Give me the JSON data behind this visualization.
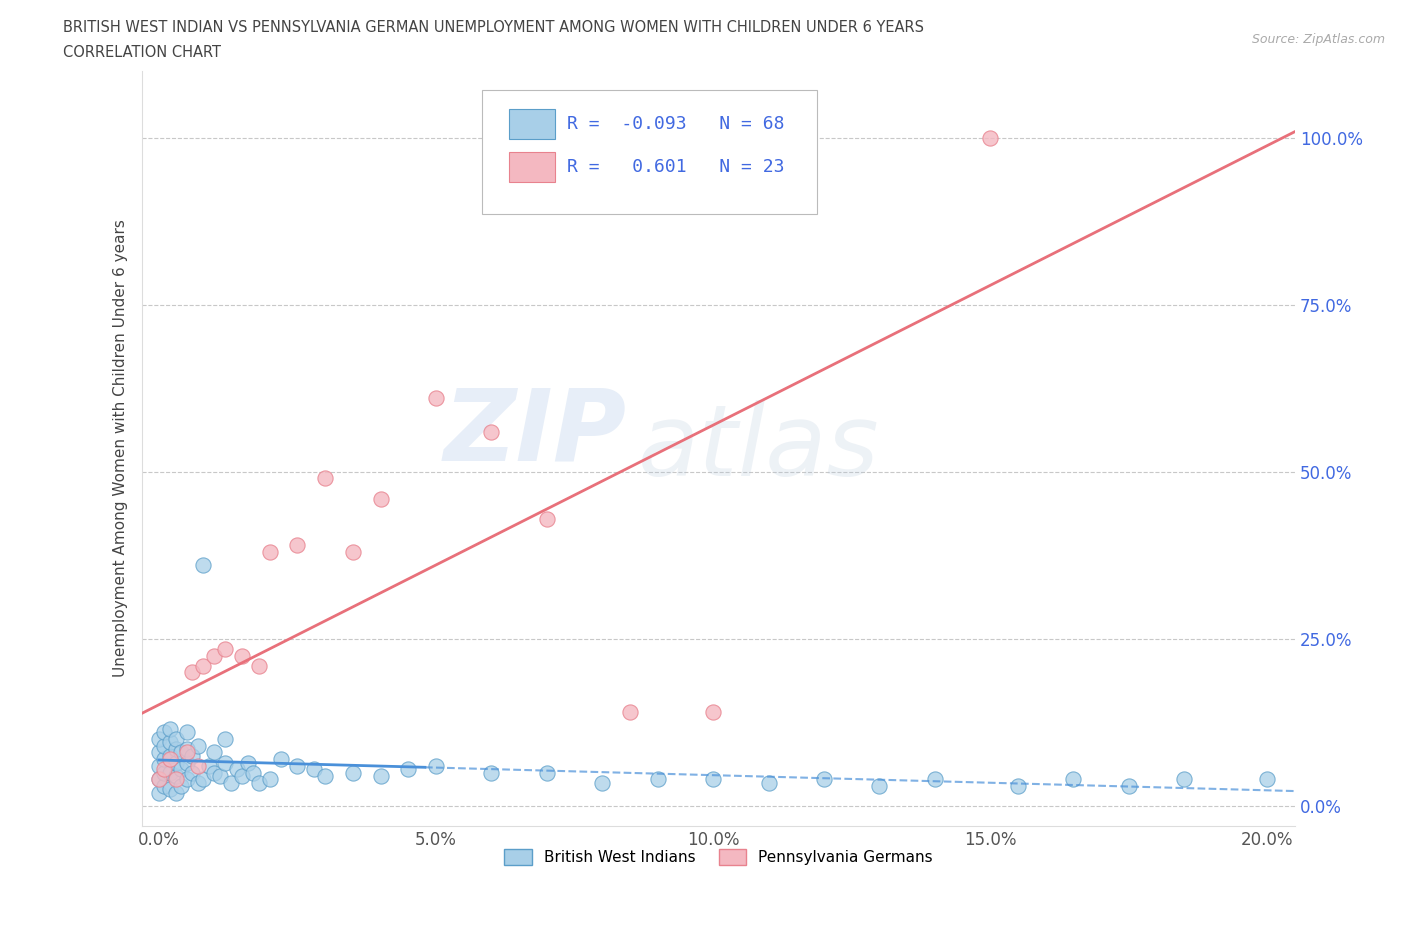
{
  "title_line1": "BRITISH WEST INDIAN VS PENNSYLVANIA GERMAN UNEMPLOYMENT AMONG WOMEN WITH CHILDREN UNDER 6 YEARS",
  "title_line2": "CORRELATION CHART",
  "source": "Source: ZipAtlas.com",
  "ylabel": "Unemployment Among Women with Children Under 6 years",
  "xlim": [
    -0.003,
    0.205
  ],
  "ylim": [
    -0.03,
    1.1
  ],
  "xticks": [
    0.0,
    0.05,
    0.1,
    0.15,
    0.2
  ],
  "yticks": [
    0.0,
    0.25,
    0.5,
    0.75,
    1.0
  ],
  "xtick_labels": [
    "0.0%",
    "5.0%",
    "10.0%",
    "15.0%",
    "20.0%"
  ],
  "ytick_labels": [
    "0.0%",
    "25.0%",
    "50.0%",
    "75.0%",
    "100.0%"
  ],
  "group1_name": "British West Indians",
  "group1_color": "#a8cfe8",
  "group1_edge_color": "#5b9ec9",
  "group1_R": -0.093,
  "group1_N": 68,
  "group1_line_color": "#4a90d9",
  "group2_name": "Pennsylvania Germans",
  "group2_color": "#f4b8c1",
  "group2_edge_color": "#e8828e",
  "group2_R": 0.601,
  "group2_N": 23,
  "group2_line_color": "#e8707a",
  "watermark_zip": "ZIP",
  "watermark_atlas": "atlas",
  "background_color": "#ffffff",
  "grid_color": "#c8c8c8",
  "legend_R_color": "#4169e1",
  "title_color": "#444444",
  "ylabel_color": "#444444",
  "ytick_color": "#4169e1",
  "xtick_color": "#555555",
  "group1_x": [
    0.0,
    0.0,
    0.0,
    0.0,
    0.0,
    0.001,
    0.001,
    0.001,
    0.001,
    0.001,
    0.002,
    0.002,
    0.002,
    0.002,
    0.002,
    0.003,
    0.003,
    0.003,
    0.003,
    0.003,
    0.004,
    0.004,
    0.004,
    0.005,
    0.005,
    0.005,
    0.005,
    0.006,
    0.006,
    0.007,
    0.007,
    0.008,
    0.008,
    0.009,
    0.01,
    0.01,
    0.011,
    0.012,
    0.012,
    0.013,
    0.014,
    0.015,
    0.016,
    0.017,
    0.018,
    0.02,
    0.022,
    0.025,
    0.028,
    0.03,
    0.035,
    0.04,
    0.045,
    0.05,
    0.06,
    0.07,
    0.08,
    0.09,
    0.1,
    0.11,
    0.12,
    0.13,
    0.14,
    0.155,
    0.165,
    0.175,
    0.185,
    0.2
  ],
  "group1_y": [
    0.02,
    0.04,
    0.06,
    0.08,
    0.1,
    0.03,
    0.05,
    0.07,
    0.09,
    0.11,
    0.025,
    0.05,
    0.075,
    0.095,
    0.115,
    0.02,
    0.045,
    0.065,
    0.085,
    0.1,
    0.03,
    0.055,
    0.08,
    0.04,
    0.065,
    0.085,
    0.11,
    0.05,
    0.075,
    0.035,
    0.09,
    0.04,
    0.36,
    0.06,
    0.05,
    0.08,
    0.045,
    0.065,
    0.1,
    0.035,
    0.055,
    0.045,
    0.065,
    0.05,
    0.035,
    0.04,
    0.07,
    0.06,
    0.055,
    0.045,
    0.05,
    0.045,
    0.055,
    0.06,
    0.05,
    0.05,
    0.035,
    0.04,
    0.04,
    0.035,
    0.04,
    0.03,
    0.04,
    0.03,
    0.04,
    0.03,
    0.04,
    0.04
  ],
  "group2_x": [
    0.0,
    0.001,
    0.002,
    0.003,
    0.005,
    0.006,
    0.007,
    0.008,
    0.01,
    0.012,
    0.015,
    0.018,
    0.02,
    0.025,
    0.03,
    0.035,
    0.04,
    0.05,
    0.06,
    0.07,
    0.085,
    0.1,
    0.15
  ],
  "group2_y": [
    0.04,
    0.055,
    0.07,
    0.04,
    0.08,
    0.2,
    0.06,
    0.21,
    0.225,
    0.235,
    0.225,
    0.21,
    0.38,
    0.39,
    0.49,
    0.38,
    0.46,
    0.61,
    0.56,
    0.43,
    0.14,
    0.14,
    1.0
  ]
}
